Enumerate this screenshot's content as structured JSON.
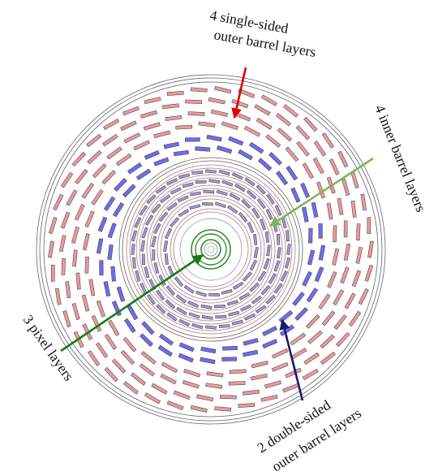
{
  "labels": {
    "single_sided_line1": "4 single-sided",
    "single_sided_line2": "outer barrel layers",
    "inner_barrel": "4 inner barrel layers",
    "pixel": "3 pixel layers",
    "double_sided_line1": "2 double-sided",
    "double_sided_line2": "outer barrel layers"
  },
  "colors": {
    "single_sided_modules": "#e99a9a",
    "double_sided_modules": "#6d6ee6",
    "inner_barrel_modules": "#9a9ad8",
    "inner_barrel_support": "#b07a7a",
    "pixel_layers": "#2e8b2e",
    "arrow_red": "#e00000",
    "arrow_green_light": "#7ab55c",
    "arrow_green_dark": "#1a7a1a",
    "arrow_navy": "#1a1a6e",
    "structure_lines": "#555555"
  },
  "layers": {
    "single_sided_outer_barrel": 4,
    "double_sided_outer_barrel": 2,
    "inner_barrel": 4,
    "pixel": 3
  }
}
